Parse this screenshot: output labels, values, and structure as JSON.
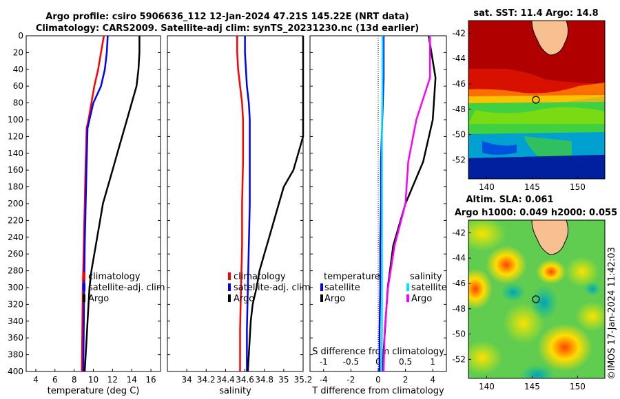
{
  "header": {
    "line1": "Argo profile: csiro 5906636_112 12-Jan-2024 47.21S 145.22E (NRT data)",
    "line2": "Climatology: CARS2009. Satellite-adj clim: synTS_20231230.nc (13d earlier)"
  },
  "colors": {
    "climatology": "#ff0000",
    "satellite": "#0000ff",
    "argo": "#000000",
    "temp_sat_diff": "#0000ff",
    "temp_argo_diff": "#000000",
    "sal_sat_diff": "#00e5ff",
    "sal_argo_diff": "#ff00ff"
  },
  "legend": {
    "climatology": "climatology",
    "satellite_adj": "satellite-adj. clim",
    "argo": "Argo",
    "temperature": "temperature",
    "salinity": "salinity",
    "satellite": "satellite"
  },
  "maps": {
    "sst_title": "sat. SST: 11.4 Argo: 14.8",
    "sla_title_1": "Altim. SLA: 0.061",
    "sla_title_2": "Argo h1000: 0.049 h2000: 0.055",
    "lat_ticks": [
      "-42",
      "-44",
      "-46",
      "-48",
      "-50",
      "-52"
    ],
    "lon_ticks": [
      "140",
      "145",
      "150"
    ],
    "lon_range": [
      138,
      153
    ],
    "lat_range": [
      -41,
      -53.5
    ],
    "argo_position": {
      "lon": 145.22,
      "lat": -47.21
    },
    "watermark": "©IMOS 17-Jan-2024 11:42:03"
  },
  "chart_data": [
    {
      "type": "line",
      "panel": "temperature",
      "xlabel": "temperature (deg C)",
      "ylabel": "",
      "xlim": [
        3,
        17
      ],
      "ylim": [
        0,
        400
      ],
      "xticks": [
        "4",
        "6",
        "8",
        "10",
        "12",
        "14",
        "16"
      ],
      "yticks": [
        "0",
        "20",
        "40",
        "60",
        "80",
        "100",
        "120",
        "140",
        "160",
        "180",
        "200",
        "220",
        "240",
        "260",
        "280",
        "300",
        "320",
        "340",
        "360",
        "380",
        "400"
      ],
      "series": [
        {
          "name": "climatology",
          "depth": [
            0,
            20,
            40,
            60,
            80,
            100,
            110,
            150,
            200,
            250,
            300,
            350,
            400
          ],
          "values": [
            11.1,
            10.8,
            10.5,
            10.1,
            9.8,
            9.5,
            9.3,
            9.2,
            9.1,
            9.0,
            8.9,
            8.85,
            8.8
          ]
        },
        {
          "name": "satellite-adj. clim",
          "depth": [
            0,
            20,
            40,
            60,
            80,
            100,
            110,
            150,
            200,
            250,
            300,
            350,
            400
          ],
          "values": [
            11.5,
            11.4,
            11.2,
            10.8,
            10.0,
            9.6,
            9.4,
            9.3,
            9.2,
            9.1,
            9.05,
            9.0,
            8.95
          ]
        },
        {
          "name": "Argo",
          "depth": [
            0,
            20,
            40,
            60,
            80,
            100,
            120,
            140,
            160,
            180,
            200,
            220,
            240,
            260,
            280,
            300,
            320,
            340,
            360,
            380,
            400
          ],
          "values": [
            14.8,
            14.8,
            14.7,
            14.5,
            14.0,
            13.5,
            13.0,
            12.5,
            12.0,
            11.5,
            11.0,
            10.7,
            10.4,
            10.1,
            9.8,
            9.6,
            9.5,
            9.4,
            9.3,
            9.2,
            9.1
          ]
        }
      ]
    },
    {
      "type": "line",
      "panel": "salinity",
      "xlabel": "salinity",
      "ylabel": "",
      "xlim": [
        33.8,
        35.2
      ],
      "ylim": [
        0,
        400
      ],
      "xticks": [
        "34",
        "34.2",
        "34.4",
        "34.6",
        "34.8",
        "35",
        "35.2"
      ],
      "series": [
        {
          "name": "climatology",
          "depth": [
            0,
            20,
            40,
            60,
            80,
            100,
            150,
            200,
            250,
            300,
            350,
            400
          ],
          "values": [
            34.52,
            34.52,
            34.53,
            34.55,
            34.57,
            34.58,
            34.58,
            34.57,
            34.57,
            34.56,
            34.55,
            34.55
          ]
        },
        {
          "name": "satellite-adj. clim",
          "depth": [
            0,
            20,
            40,
            60,
            80,
            100,
            150,
            200,
            250,
            300,
            350,
            400
          ],
          "values": [
            34.6,
            34.6,
            34.61,
            34.62,
            34.64,
            34.65,
            34.65,
            34.65,
            34.64,
            34.63,
            34.62,
            34.62
          ]
        },
        {
          "name": "Argo",
          "depth": [
            0,
            20,
            40,
            60,
            80,
            100,
            120,
            140,
            160,
            180,
            200,
            220,
            240,
            260,
            280,
            300,
            320,
            340,
            360,
            380,
            400
          ],
          "values": [
            35.2,
            35.2,
            35.2,
            35.2,
            35.2,
            35.2,
            35.2,
            35.15,
            35.1,
            35.0,
            34.95,
            34.9,
            34.85,
            34.8,
            34.75,
            34.72,
            34.68,
            34.66,
            34.65,
            34.64,
            34.63
          ]
        }
      ]
    },
    {
      "type": "line",
      "panel": "differences",
      "xlabel": "T difference from climatology",
      "x2label": "S difference from climatology",
      "xlim": [
        -5,
        5
      ],
      "x2lim": [
        -1.25,
        1.25
      ],
      "ylim": [
        0,
        400
      ],
      "xticks": [
        "-4",
        "-2",
        "0",
        "2",
        "4"
      ],
      "x2ticks": [
        "-1",
        "-0.5",
        "0",
        "0.5",
        "1"
      ],
      "series": [
        {
          "name": "temperature satellite",
          "axis": "T",
          "depth": [
            0,
            50,
            100,
            150,
            200,
            250,
            300,
            350,
            400
          ],
          "values": [
            0.4,
            0.4,
            0.3,
            0.2,
            0.2,
            0.15,
            0.15,
            0.1,
            0.1
          ]
        },
        {
          "name": "temperature Argo",
          "axis": "T",
          "depth": [
            0,
            50,
            100,
            150,
            200,
            250,
            300,
            350,
            400
          ],
          "values": [
            3.7,
            4.2,
            4.0,
            3.3,
            2.0,
            1.1,
            0.7,
            0.5,
            0.3
          ]
        },
        {
          "name": "salinity satellite",
          "axis": "S",
          "depth": [
            0,
            50,
            100,
            150,
            200,
            250,
            300,
            350,
            400
          ],
          "values": [
            0.08,
            0.08,
            0.07,
            0.07,
            0.07,
            0.07,
            0.07,
            0.07,
            0.06
          ]
        },
        {
          "name": "salinity Argo",
          "axis": "S",
          "depth": [
            0,
            50,
            100,
            150,
            200,
            250,
            300,
            350,
            400
          ],
          "values": [
            0.95,
            0.95,
            0.7,
            0.55,
            0.5,
            0.3,
            0.18,
            0.12,
            0.1
          ]
        }
      ]
    }
  ]
}
